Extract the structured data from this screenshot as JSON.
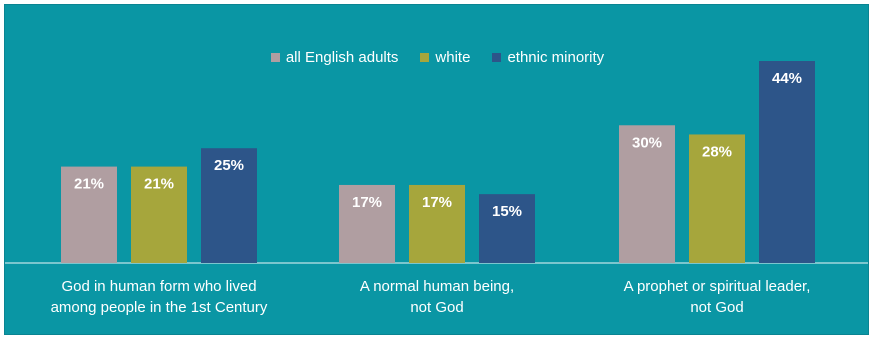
{
  "chart_data": {
    "type": "bar",
    "categories": [
      [
        "God in human form who lived",
        "among people in the 1st Century"
      ],
      [
        "A normal human being,",
        "not God"
      ],
      [
        "A prophet or spiritual leader,",
        "not God"
      ]
    ],
    "series": [
      {
        "name": "all English adults",
        "values": [
          21,
          17,
          30
        ],
        "labels": [
          "21%",
          "17%",
          "30%"
        ],
        "color": "#b09ea1"
      },
      {
        "name": "white",
        "values": [
          21,
          17,
          28
        ],
        "labels": [
          "21%",
          "17%",
          "28%"
        ],
        "color": "#a6a63c"
      },
      {
        "name": "ethnic minority",
        "values": [
          25,
          15,
          44
        ],
        "labels": [
          "25%",
          "15%",
          "44%"
        ],
        "color": "#2d5589"
      }
    ],
    "ylim": [
      0,
      44
    ],
    "grid": false,
    "legend_position": "top-center",
    "colors": {
      "background": "#0a96a4",
      "baseline": "#bfe3e7",
      "text": "#ffffff"
    }
  }
}
